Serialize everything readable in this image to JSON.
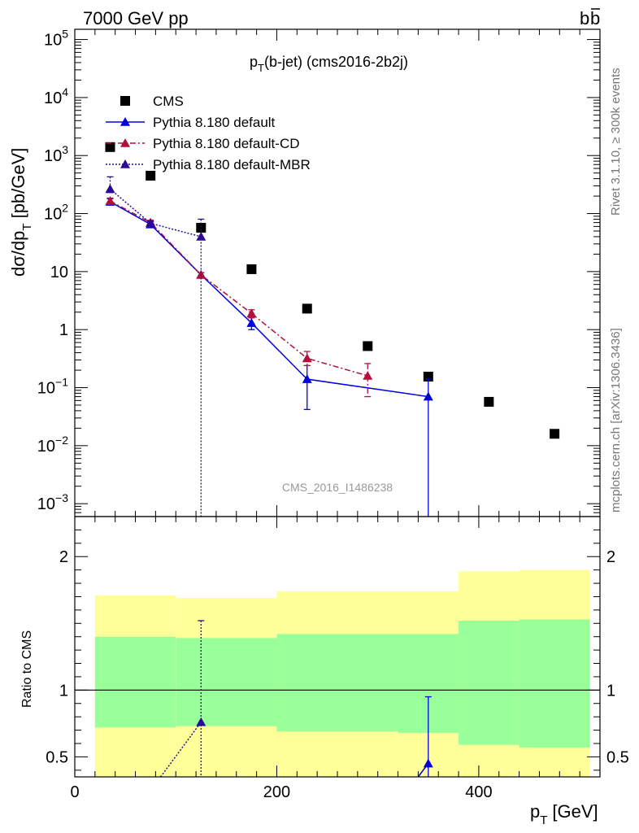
{
  "header": {
    "energy": "7000 GeV pp",
    "process_b": "b",
    "process_bbar": "b"
  },
  "side_text": {
    "rivet": "Rivet 3.1.10, ≥ 300k events",
    "mcplots": "mcplots.cern.ch [arXiv:1306.3436]"
  },
  "watermark": "CMS_2016_I1486238",
  "colors": {
    "cms": "#000000",
    "default": "#0000dd",
    "cd": "#b0103a",
    "mbr": "#2a0a96",
    "band_yellow": "#ffff99",
    "band_green": "#99ff99"
  },
  "chart_data": [
    {
      "type": "scatter",
      "title_main": "p",
      "title_sub": "T",
      "title_rest": "(b-jet) (cms2016-2b2j)",
      "ylabel_main": "dσ/dp",
      "ylabel_sub": "T",
      "ylabel_unit": "[pb/GeV]",
      "yscale": "log",
      "xlim": [
        0,
        520
      ],
      "ylim": [
        0.0006,
        150000
      ],
      "yticks": [
        {
          "value": 0.001,
          "base": "10",
          "exp": "−3"
        },
        {
          "value": 0.01,
          "base": "10",
          "exp": "−2"
        },
        {
          "value": 0.1,
          "base": "10",
          "exp": "−1"
        },
        {
          "value": 1,
          "base": "1",
          "exp": ""
        },
        {
          "value": 10,
          "base": "10",
          "exp": ""
        },
        {
          "value": 100,
          "base": "10",
          "exp": "2"
        },
        {
          "value": 1000,
          "base": "10",
          "exp": "3"
        },
        {
          "value": 10000,
          "base": "10",
          "exp": "4"
        },
        {
          "value": 100000,
          "base": "10",
          "exp": "5"
        }
      ],
      "legend_position": "top-left",
      "series": [
        {
          "name": "CMS",
          "style": "square",
          "x": [
            35,
            75,
            125,
            175,
            230,
            290,
            350,
            410,
            475
          ],
          "y": [
            1400,
            450,
            57,
            11,
            2.3,
            0.52,
            0.155,
            0.057,
            0.016
          ]
        },
        {
          "name": "Pythia 8.180 default",
          "style": "solid",
          "x": [
            35,
            75,
            125,
            175,
            230,
            350
          ],
          "y": [
            160,
            65,
            8.8,
            1.3,
            0.14,
            0.07
          ],
          "err_lo": [
            140,
            58,
            8.0,
            1.0,
            0.042,
            1e-05
          ],
          "err_hi": [
            180,
            72,
            9.6,
            1.6,
            0.24,
            0.14
          ]
        },
        {
          "name": "Pythia 8.180 default-CD",
          "style": "dashdot",
          "x": [
            35,
            75,
            125,
            175,
            230,
            290
          ],
          "y": [
            165,
            70,
            8.8,
            1.9,
            0.32,
            0.16
          ],
          "err_lo": [
            145,
            63,
            8.0,
            1.6,
            0.24,
            0.07
          ],
          "err_hi": [
            185,
            77,
            9.6,
            2.2,
            0.42,
            0.26
          ]
        },
        {
          "name": "Pythia 8.180 default-MBR",
          "style": "dotted",
          "x": [
            35,
            75,
            125
          ],
          "y": [
            265,
            68,
            40
          ],
          "err_lo": [
            230,
            62,
            1e-05
          ],
          "err_hi": [
            430,
            74,
            80
          ]
        }
      ]
    },
    {
      "type": "scatter",
      "ylabel": "Ratio to CMS",
      "xlabel_main": "p",
      "xlabel_sub": "T",
      "xlabel_unit": "[GeV]",
      "xlim": [
        0,
        520
      ],
      "ylim": [
        0.35,
        2.3
      ],
      "xticks": [
        0,
        200,
        400
      ],
      "yticks": [
        0.5,
        1,
        2
      ],
      "yticks_labels": [
        "0.5",
        "1",
        "2"
      ],
      "reference": 1,
      "bands": {
        "edges": [
          20,
          100,
          200,
          320,
          380,
          440,
          510
        ],
        "yellow_lo": [
          0.72,
          0.73,
          0.69,
          0.68,
          0.59,
          0.57,
          0.56
        ],
        "yellow_hi": [
          1.71,
          1.69,
          1.74,
          1.74,
          1.89,
          1.9,
          1.91
        ],
        "green_lo": [
          0.72,
          0.73,
          0.69,
          0.68,
          0.59,
          0.57,
          0.56
        ],
        "green_hi": [
          1.4,
          1.39,
          1.42,
          1.42,
          1.52,
          1.53,
          1.54
        ]
      },
      "series": [
        {
          "name": "Pythia 8.180 default",
          "x": [
            350
          ],
          "y": [
            0.45
          ],
          "err_lo": [
            0.3
          ],
          "err_hi": [
            0.95
          ],
          "line_from": [
            [
              340,
              0.35
            ]
          ]
        },
        {
          "name": "Pythia 8.180 default-MBR",
          "x": [
            125
          ],
          "y": [
            0.76
          ],
          "err_lo": [
            0.3
          ],
          "err_hi": [
            1.52
          ],
          "line_from": [
            [
              85,
              0.35
            ]
          ]
        }
      ]
    }
  ]
}
